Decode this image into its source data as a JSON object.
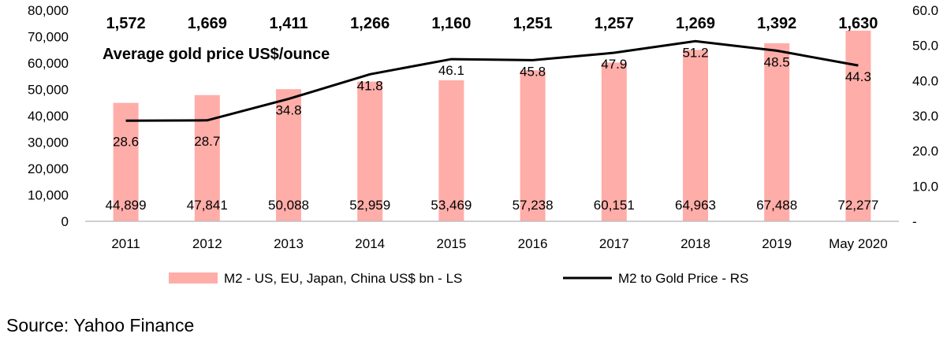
{
  "chart_data": {
    "type": "bar+line",
    "title": "Average gold price US$/ounce",
    "categories": [
      "2011",
      "2012",
      "2013",
      "2014",
      "2015",
      "2016",
      "2017",
      "2018",
      "2019",
      "May 2020"
    ],
    "gold_price_labels": [
      "1,572",
      "1,669",
      "1,411",
      "1,266",
      "1,160",
      "1,251",
      "1,257",
      "1,269",
      "1,392",
      "1,630"
    ],
    "series": [
      {
        "name": "M2 - US, EU, Japan, China US$ bn - LS",
        "type": "bar",
        "axis": "left",
        "values": [
          44899,
          47841,
          50088,
          52959,
          53469,
          57238,
          60151,
          64963,
          67488,
          72277
        ],
        "labels": [
          "44,899",
          "47,841",
          "50,088",
          "52,959",
          "53,469",
          "57,238",
          "60,151",
          "64,963",
          "67,488",
          "72,277"
        ]
      },
      {
        "name": "M2 to Gold Price - RS",
        "type": "line",
        "axis": "right",
        "values": [
          28.6,
          28.7,
          34.8,
          41.8,
          46.1,
          45.8,
          47.9,
          51.2,
          48.5,
          44.3
        ],
        "labels": [
          "28.6",
          "28.7",
          "34.8",
          "41.8",
          "46.1",
          "45.8",
          "47.9",
          "51.2",
          "48.5",
          "44.3"
        ]
      }
    ],
    "y_left": {
      "min": 0,
      "max": 80000,
      "ticks": [
        0,
        10000,
        20000,
        30000,
        40000,
        50000,
        60000,
        70000,
        80000
      ],
      "tick_labels": [
        "0",
        "10,000",
        "20,000",
        "30,000",
        "40,000",
        "50,000",
        "60,000",
        "70,000",
        "80,000"
      ]
    },
    "y_right": {
      "min": 0,
      "max": 60,
      "ticks": [
        0,
        10,
        20,
        30,
        40,
        50,
        60
      ],
      "tick_labels": [
        "-",
        "10.0",
        "20.0",
        "30.0",
        "40.0",
        "50.0",
        "60.0"
      ]
    },
    "grid": false,
    "legend_position": "bottom",
    "colors": {
      "bar": "#FFADA8",
      "line": "#000000"
    }
  },
  "source": "Source: Yahoo Finance"
}
